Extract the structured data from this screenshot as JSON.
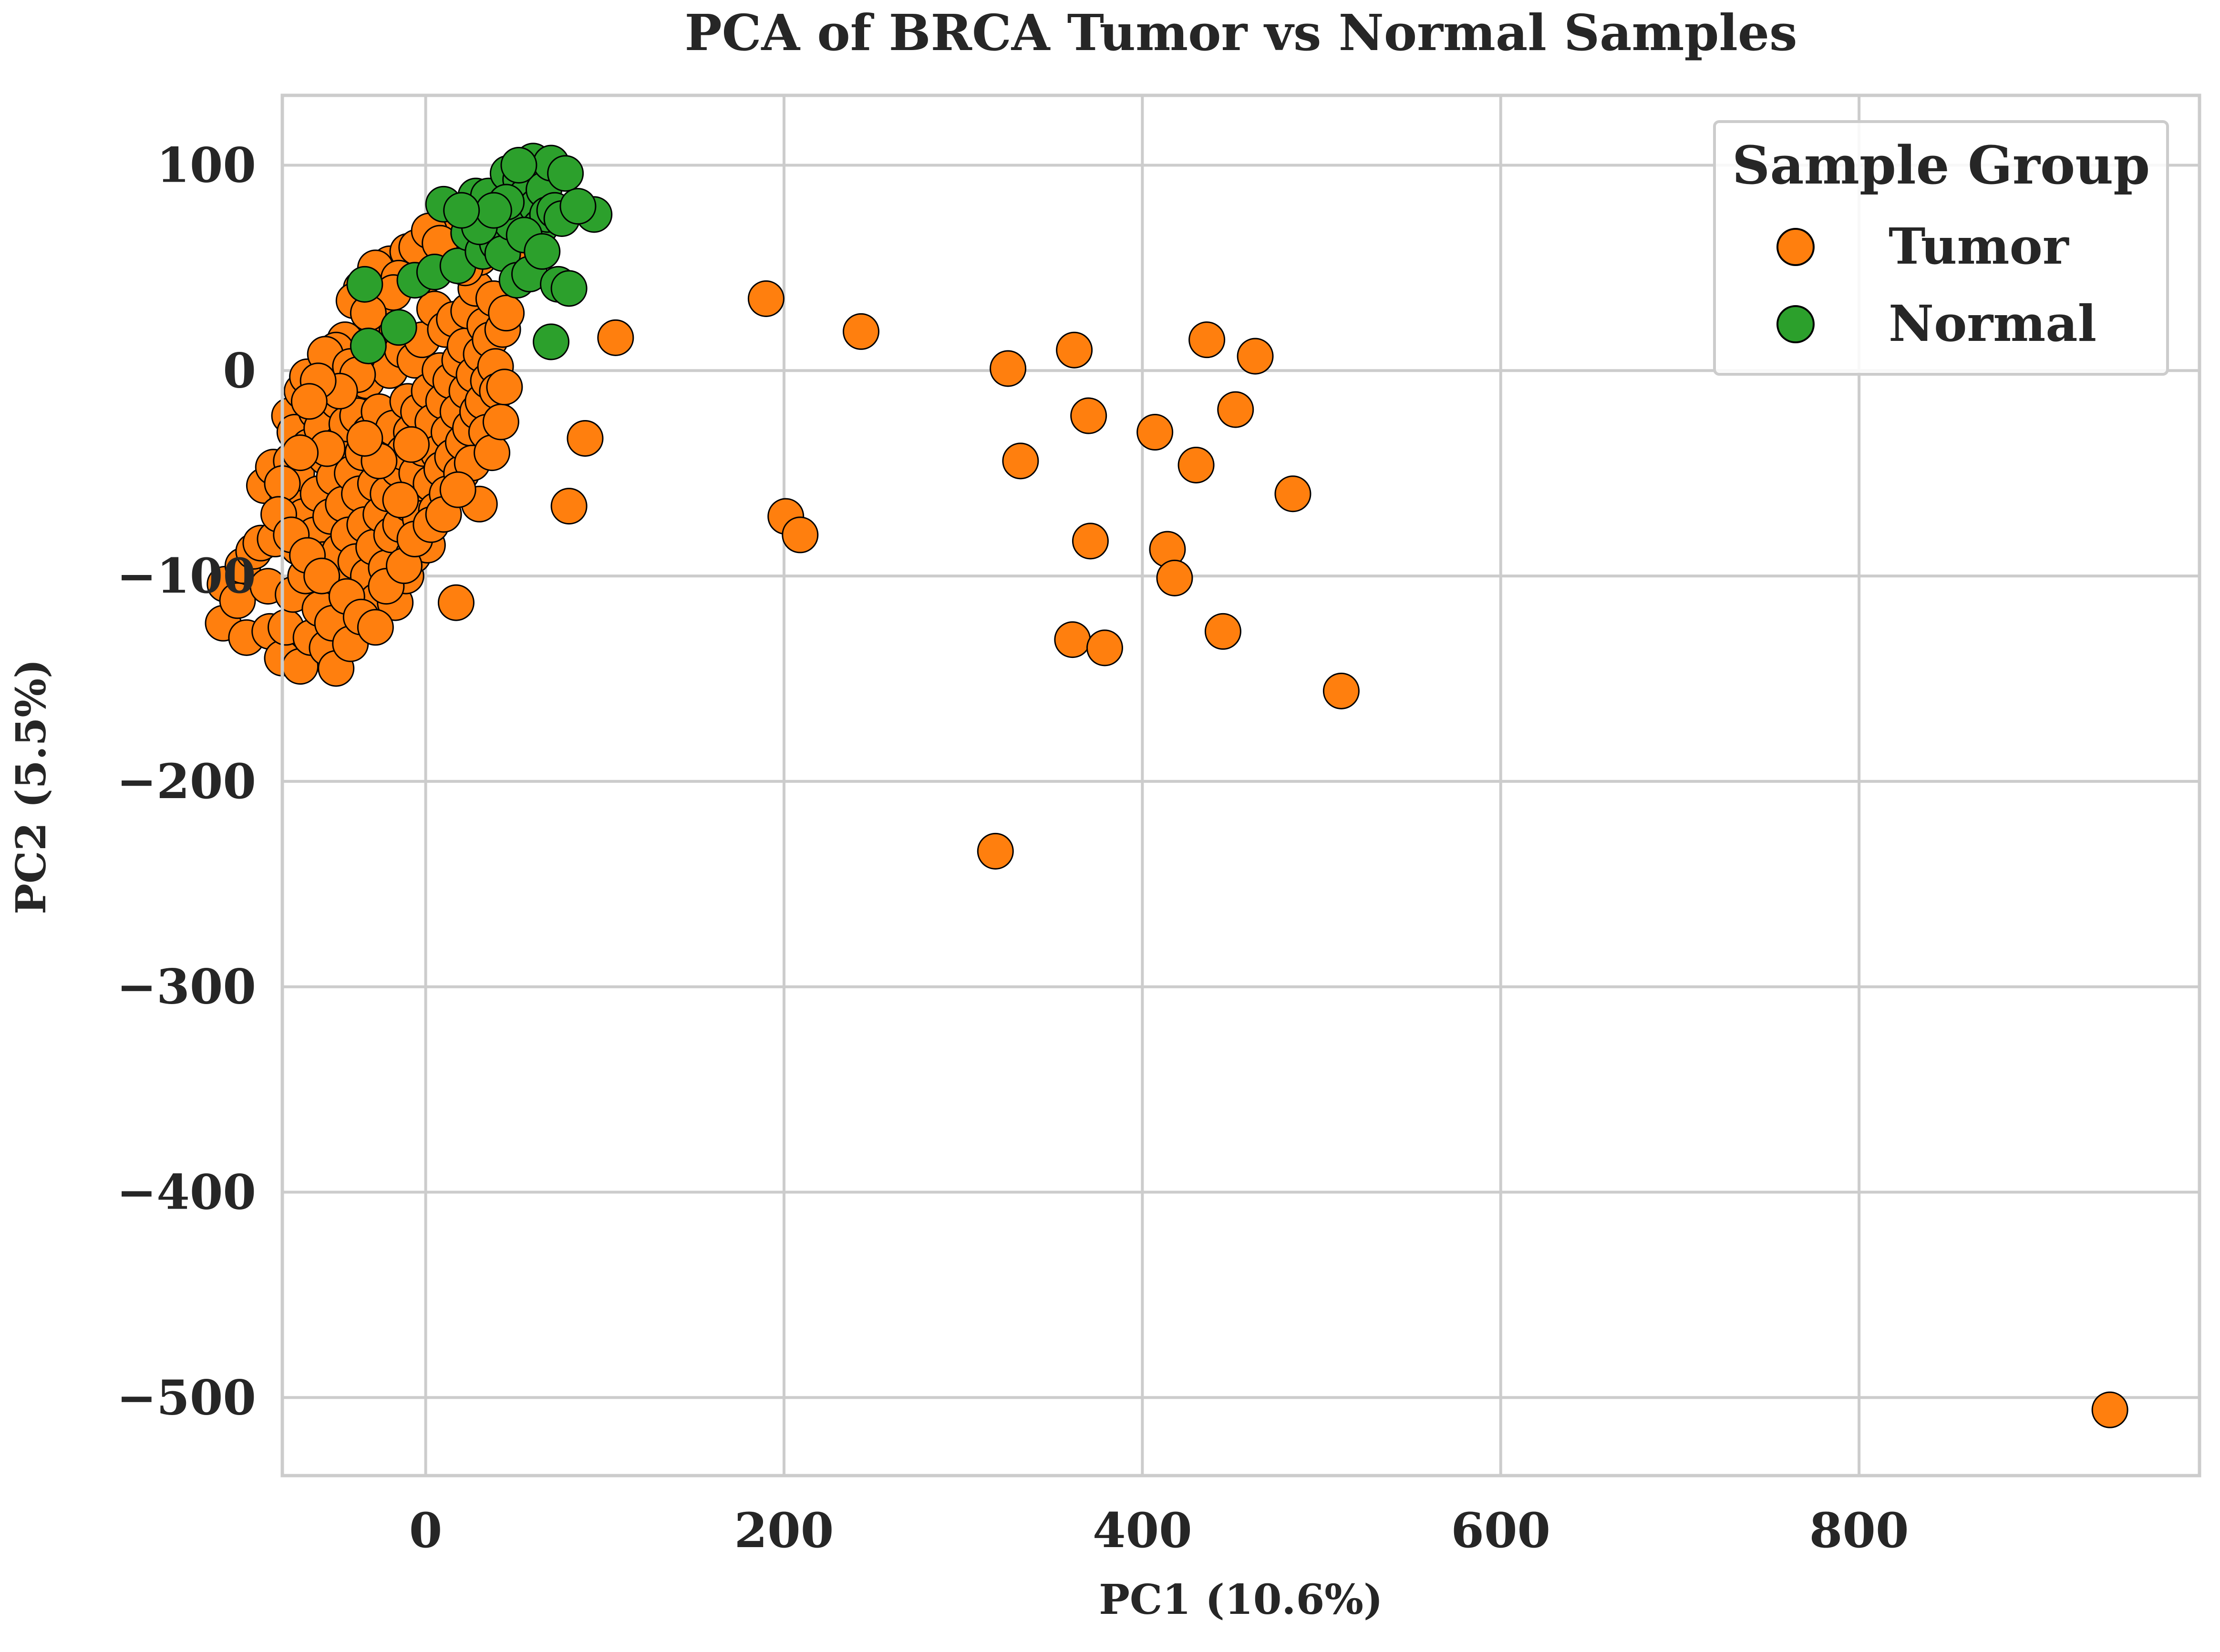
{
  "chart_data": {
    "type": "scatter",
    "title": "PCA of BRCA Tumor vs Normal Samples",
    "xlabel": "PC1 (10.6%)",
    "ylabel": "PC2 (5.5%)",
    "xlim": [
      -80,
      990
    ],
    "ylim": [
      -538,
      134
    ],
    "xticks": [
      0,
      200,
      400,
      600,
      800
    ],
    "yticks": [
      100,
      0,
      -100,
      -200,
      -300,
      -400,
      -500
    ],
    "grid": true,
    "legend": {
      "title": "Sample Group",
      "placement": "top-right"
    },
    "series": [
      {
        "name": "Tumor",
        "color": "#ff7f0e",
        "points": [
          [
            -112,
            -104
          ],
          [
            -113,
            -123
          ],
          [
            -105,
            -112
          ],
          [
            -102,
            -95
          ],
          [
            -100,
            -130
          ],
          [
            -96,
            -88
          ],
          [
            -92,
            -84
          ],
          [
            -90,
            -56
          ],
          [
            -87,
            -127
          ],
          [
            -88,
            -105
          ],
          [
            -85,
            -47
          ],
          [
            -84,
            -82
          ],
          [
            -80,
            -140
          ],
          [
            -78,
            -125
          ],
          [
            -77,
            -63
          ],
          [
            -76,
            -22
          ],
          [
            -75,
            -44
          ],
          [
            -74,
            -109
          ],
          [
            -73,
            -30
          ],
          [
            -71,
            -86
          ],
          [
            -72,
            -50
          ],
          [
            -70,
            -144
          ],
          [
            -69,
            -10
          ],
          [
            -68,
            -71
          ],
          [
            -67,
            -100
          ],
          [
            -66,
            -3
          ],
          [
            -65,
            -37
          ],
          [
            -64,
            -130
          ],
          [
            -62,
            -80
          ],
          [
            -61,
            -20
          ],
          [
            -60,
            -60
          ],
          [
            -59,
            -116
          ],
          [
            -58,
            -28
          ],
          [
            -57,
            -92
          ],
          [
            -56,
            -42
          ],
          [
            -55,
            -135
          ],
          [
            -54,
            -6
          ],
          [
            -53,
            -71
          ],
          [
            -52,
            -123
          ],
          [
            -51,
            -52
          ],
          [
            -50,
            -145
          ],
          [
            -49,
            -15
          ],
          [
            -48,
            -88
          ],
          [
            -47,
            -35
          ],
          [
            -46,
            -65
          ],
          [
            -45,
            -105
          ],
          [
            -44,
            -26
          ],
          [
            -43,
            -80
          ],
          [
            -42,
            -133
          ],
          [
            -41,
            -50
          ],
          [
            -40,
            -10
          ],
          [
            -39,
            -93
          ],
          [
            -38,
            -22
          ],
          [
            -37,
            -60
          ],
          [
            -36,
            -118
          ],
          [
            -35,
            -40
          ],
          [
            -34,
            -75
          ],
          [
            -33,
            -5
          ],
          [
            -32,
            -100
          ],
          [
            -31,
            -30
          ],
          [
            -30,
            18
          ],
          [
            -29,
            -86
          ],
          [
            -28,
            -55
          ],
          [
            -27,
            -112
          ],
          [
            -26,
            -20
          ],
          [
            -25,
            -70
          ],
          [
            -24,
            -38
          ],
          [
            -23,
            35
          ],
          [
            -22,
            -96
          ],
          [
            -21,
            -60
          ],
          [
            -20,
            0
          ],
          [
            -19,
            -80
          ],
          [
            -18,
            -28
          ],
          [
            -17,
            -113
          ],
          [
            -16,
            20
          ],
          [
            -15,
            -48
          ],
          [
            -14,
            -75
          ],
          [
            -13,
            10
          ],
          [
            -12,
            -40
          ],
          [
            -11,
            -100
          ],
          [
            -10,
            -15
          ],
          [
            -9,
            -65
          ],
          [
            -8,
            -30
          ],
          [
            -7,
            -90
          ],
          [
            -6,
            5
          ],
          [
            -5,
            -50
          ],
          [
            -4,
            -20
          ],
          [
            -3,
            -72
          ],
          [
            -2,
            15
          ],
          [
            -1,
            -38
          ],
          [
            0,
            46
          ],
          [
            1,
            -85
          ],
          [
            2,
            -10
          ],
          [
            3,
            -55
          ],
          [
            4,
            -25
          ],
          [
            5,
            30
          ],
          [
            6,
            -68
          ],
          [
            7,
            -40
          ],
          [
            8,
            0
          ],
          [
            9,
            -48
          ],
          [
            10,
            -15
          ],
          [
            11,
            20
          ],
          [
            12,
            -60
          ],
          [
            13,
            -30
          ],
          [
            14,
            -5
          ],
          [
            15,
            -42
          ],
          [
            16,
            25
          ],
          [
            17,
            -113
          ],
          [
            18,
            -20
          ],
          [
            19,
            5
          ],
          [
            20,
            -50
          ],
          [
            21,
            -35
          ],
          [
            22,
            12
          ],
          [
            23,
            -10
          ],
          [
            24,
            29
          ],
          [
            25,
            -28
          ],
          [
            26,
            -45
          ],
          [
            27,
            -2
          ],
          [
            28,
            40
          ],
          [
            29,
            -20
          ],
          [
            30,
            -65
          ],
          [
            31,
            8
          ],
          [
            32,
            -15
          ],
          [
            33,
            22
          ],
          [
            34,
            -30
          ],
          [
            35,
            -5
          ],
          [
            36,
            15
          ],
          [
            37,
            -40
          ],
          [
            38,
            35
          ],
          [
            39,
            2
          ],
          [
            40,
            -10
          ],
          [
            42,
            -25
          ],
          [
            43,
            20
          ],
          [
            44,
            -8
          ],
          [
            45,
            28
          ],
          [
            46,
            58
          ],
          [
            38,
            60
          ],
          [
            30,
            55
          ],
          [
            22,
            50
          ],
          [
            16,
            65
          ],
          [
            -20,
            52
          ],
          [
            -28,
            50
          ],
          [
            -36,
            40
          ],
          [
            -40,
            34
          ],
          [
            -10,
            58
          ],
          [
            -5,
            60
          ],
          [
            2,
            68
          ],
          [
            8,
            62
          ],
          [
            -15,
            45
          ],
          [
            -24,
            30
          ],
          [
            -18,
            38
          ],
          [
            -32,
            28
          ],
          [
            -45,
            15
          ],
          [
            -50,
            10
          ],
          [
            -56,
            8
          ],
          [
            -42,
            2
          ],
          [
            -38,
            -2
          ],
          [
            -48,
            -10
          ],
          [
            -60,
            -5
          ],
          [
            -65,
            -15
          ],
          [
            -55,
            -38
          ],
          [
            -70,
            -40
          ],
          [
            -80,
            -55
          ],
          [
            -82,
            -70
          ],
          [
            -75,
            -80
          ],
          [
            -66,
            -90
          ],
          [
            -58,
            -100
          ],
          [
            -44,
            -110
          ],
          [
            -36,
            -120
          ],
          [
            -28,
            -125
          ],
          [
            -22,
            -105
          ],
          [
            -12,
            -95
          ],
          [
            -6,
            -82
          ],
          [
            3,
            -75
          ],
          [
            10,
            -70
          ],
          [
            18,
            -58
          ],
          [
            -14,
            -63
          ],
          [
            -26,
            -44
          ],
          [
            -34,
            -33
          ],
          [
            -8,
            -36
          ],
          [
            190,
            35
          ],
          [
            243,
            19
          ],
          [
            106,
            16
          ],
          [
            89,
            -33
          ],
          [
            80,
            -66
          ],
          [
            201,
            -71
          ],
          [
            209,
            -80
          ],
          [
            325,
            1
          ],
          [
            332,
            -44
          ],
          [
            362,
            10
          ],
          [
            370,
            -22
          ],
          [
            371,
            -83
          ],
          [
            407,
            -30
          ],
          [
            414,
            -87
          ],
          [
            418,
            -101
          ],
          [
            430,
            -46
          ],
          [
            436,
            15
          ],
          [
            445,
            -127
          ],
          [
            452,
            -19
          ],
          [
            463,
            7
          ],
          [
            484,
            -60
          ],
          [
            361,
            -131
          ],
          [
            379,
            -135
          ],
          [
            511,
            -156
          ],
          [
            318,
            -234
          ],
          [
            940,
            -506
          ]
        ]
      },
      {
        "name": "Normal",
        "color": "#2ca02c",
        "points": [
          [
            -32,
            12
          ],
          [
            -34,
            42
          ],
          [
            -15,
            21
          ],
          [
            -6,
            44
          ],
          [
            5,
            48
          ],
          [
            10,
            81
          ],
          [
            18,
            51
          ],
          [
            24,
            67
          ],
          [
            28,
            85
          ],
          [
            35,
            85
          ],
          [
            32,
            58
          ],
          [
            40,
            62
          ],
          [
            43,
            57
          ],
          [
            46,
            96
          ],
          [
            48,
            72
          ],
          [
            51,
            44
          ],
          [
            53,
            93
          ],
          [
            56,
            85
          ],
          [
            58,
            47
          ],
          [
            60,
            102
          ],
          [
            62,
            80
          ],
          [
            64,
            70
          ],
          [
            66,
            88
          ],
          [
            68,
            76
          ],
          [
            70,
            101
          ],
          [
            72,
            78
          ],
          [
            74,
            42
          ],
          [
            76,
            74
          ],
          [
            78,
            96
          ],
          [
            80,
            40
          ],
          [
            70,
            14
          ],
          [
            94,
            76
          ],
          [
            30,
            70
          ],
          [
            45,
            82
          ],
          [
            55,
            66
          ],
          [
            65,
            58
          ],
          [
            52,
            100
          ],
          [
            38,
            78
          ],
          [
            20,
            78
          ],
          [
            85,
            80
          ]
        ]
      }
    ]
  }
}
